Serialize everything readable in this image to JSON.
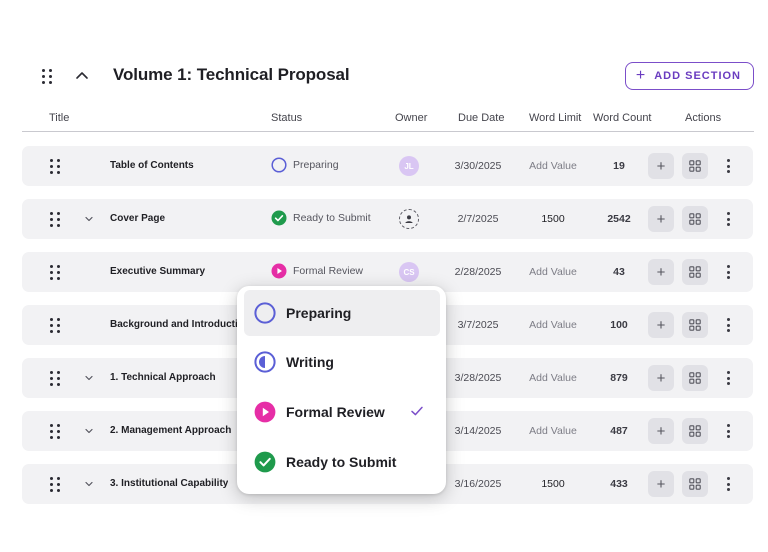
{
  "header": {
    "title": "Volume 1: Technical Proposal",
    "add_section_label": "ADD SECTION"
  },
  "columns": {
    "title": "Title",
    "status": "Status",
    "owner": "Owner",
    "due_date": "Due Date",
    "word_limit": "Word Limit",
    "word_count": "Word Count",
    "actions": "Actions"
  },
  "rows": [
    {
      "title": "Table of Contents",
      "status": "Preparing",
      "owner": "JL",
      "due": "3/30/2025",
      "limit": "Add Value",
      "count": "19"
    },
    {
      "title": "Cover Page",
      "status": "Ready to Submit",
      "owner": "",
      "due": "2/7/2025",
      "limit": "1500",
      "count": "2542"
    },
    {
      "title": "Executive Summary",
      "status": "Formal Review",
      "owner": "CS",
      "due": "2/28/2025",
      "limit": "Add Value",
      "count": "43"
    },
    {
      "title": "Background and Introduction",
      "status": "",
      "owner": "",
      "due": "3/7/2025",
      "limit": "Add Value",
      "count": "100"
    },
    {
      "title": "1. Technical Approach",
      "status": "",
      "owner": "",
      "due": "3/28/2025",
      "limit": "Add Value",
      "count": "879"
    },
    {
      "title": "2. Management Approach",
      "status": "",
      "owner": "",
      "due": "3/14/2025",
      "limit": "Add Value",
      "count": "487"
    },
    {
      "title": "3. Institutional Capability",
      "status": "",
      "owner": "",
      "due": "3/16/2025",
      "limit": "1500",
      "count": "433"
    }
  ],
  "status_menu": {
    "options": [
      "Preparing",
      "Writing",
      "Formal Review",
      "Ready to Submit"
    ],
    "highlighted": "Preparing",
    "checked": "Formal Review"
  },
  "colors": {
    "accent": "#7b4ec9",
    "preparing": "#5b5fd6",
    "writing": "#5b5fd6",
    "formal_review": "#e62ea6",
    "ready_to_submit": "#1f9a4c",
    "avatar": "#d9c6f3"
  },
  "icons": {
    "drag": "drag-handle-icon",
    "collapse": "chevron-up-icon",
    "expand": "chevron-down-icon",
    "add": "plus-icon",
    "layout": "grid-icon",
    "more": "more-vertical-icon",
    "owner_empty": "user-add-icon",
    "check": "check-icon"
  }
}
